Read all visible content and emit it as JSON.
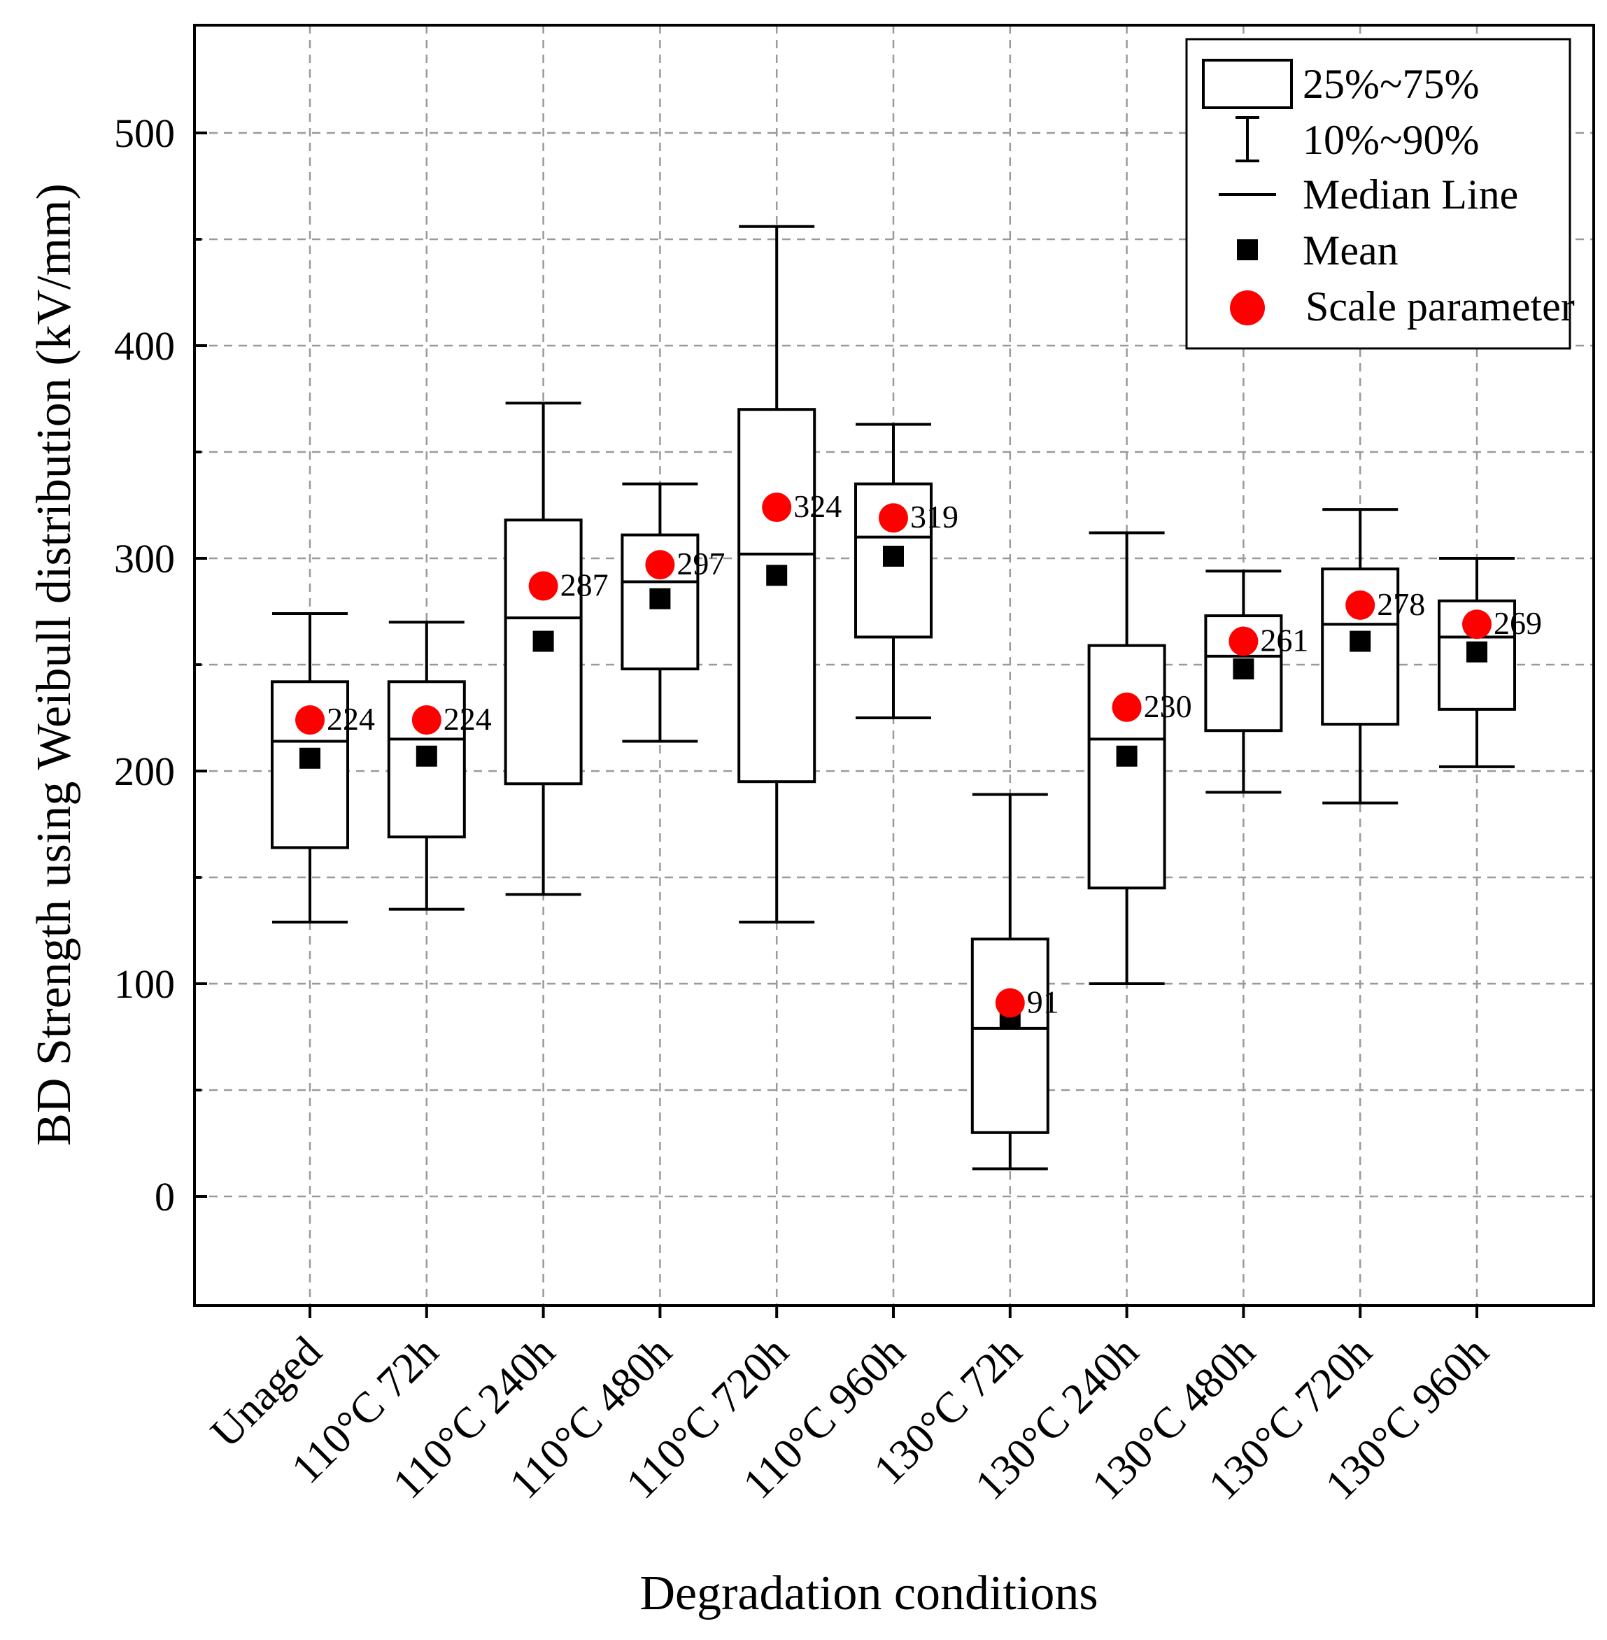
{
  "chart_data": {
    "type": "box",
    "title": "",
    "xlabel": "Degradation conditions",
    "ylabel": "BD Strength using Weibull distribution (kV/mm)",
    "ylim": [
      -50,
      550
    ],
    "yticks": [
      0,
      100,
      200,
      300,
      400,
      500
    ],
    "grid": true,
    "legend_position": "top-right",
    "legend": [
      {
        "symbol": "box",
        "label": "25%~75%"
      },
      {
        "symbol": "whisker",
        "label": "10%~90%"
      },
      {
        "symbol": "line",
        "label": "Median Line"
      },
      {
        "symbol": "square",
        "label": "Mean"
      },
      {
        "symbol": "circle",
        "label": "Scale parameter",
        "color": "#ff0000"
      }
    ],
    "categories": [
      "Unaged",
      "110°C 72h",
      "110°C 240h",
      "110°C 480h",
      "110°C 720h",
      "110°C 960h",
      "130°C 72h",
      "130°C 240h",
      "130°C 480h",
      "130°C 720h",
      "130°C 960h"
    ],
    "series": [
      {
        "p10": 129,
        "q1": 164,
        "median": 214,
        "q3": 242,
        "p90": 274,
        "mean": 206,
        "scale": 224,
        "label": "224"
      },
      {
        "p10": 135,
        "q1": 169,
        "median": 215,
        "q3": 242,
        "p90": 270,
        "mean": 207,
        "scale": 224,
        "label": "224"
      },
      {
        "p10": 142,
        "q1": 194,
        "median": 272,
        "q3": 318,
        "p90": 373,
        "mean": 261,
        "scale": 287,
        "label": "287"
      },
      {
        "p10": 214,
        "q1": 248,
        "median": 289,
        "q3": 311,
        "p90": 335,
        "mean": 281,
        "scale": 297,
        "label": "297"
      },
      {
        "p10": 129,
        "q1": 195,
        "median": 302,
        "q3": 370,
        "p90": 456,
        "mean": 292,
        "scale": 324,
        "label": "324"
      },
      {
        "p10": 225,
        "q1": 263,
        "median": 310,
        "q3": 335,
        "p90": 363,
        "mean": 301,
        "scale": 319,
        "label": "319"
      },
      {
        "p10": 13,
        "q1": 30,
        "median": 79,
        "q3": 121,
        "p90": 189,
        "mean": 84,
        "scale": 91,
        "label": "91"
      },
      {
        "p10": 100,
        "q1": 145,
        "median": 215,
        "q3": 259,
        "p90": 312,
        "mean": 207,
        "scale": 230,
        "label": "230"
      },
      {
        "p10": 190,
        "q1": 219,
        "median": 254,
        "q3": 273,
        "p90": 294,
        "mean": 248,
        "scale": 261,
        "label": "261"
      },
      {
        "p10": 185,
        "q1": 222,
        "median": 269,
        "q3": 295,
        "p90": 323,
        "mean": 261,
        "scale": 278,
        "label": "278"
      },
      {
        "p10": 202,
        "q1": 229,
        "median": 263,
        "q3": 280,
        "p90": 300,
        "mean": 256,
        "scale": 269,
        "label": "269"
      }
    ],
    "colors": {
      "scale": "#ff0000",
      "mean": "#000000",
      "box_fill": "#ffffff",
      "grid": "#9a9a9a"
    }
  }
}
